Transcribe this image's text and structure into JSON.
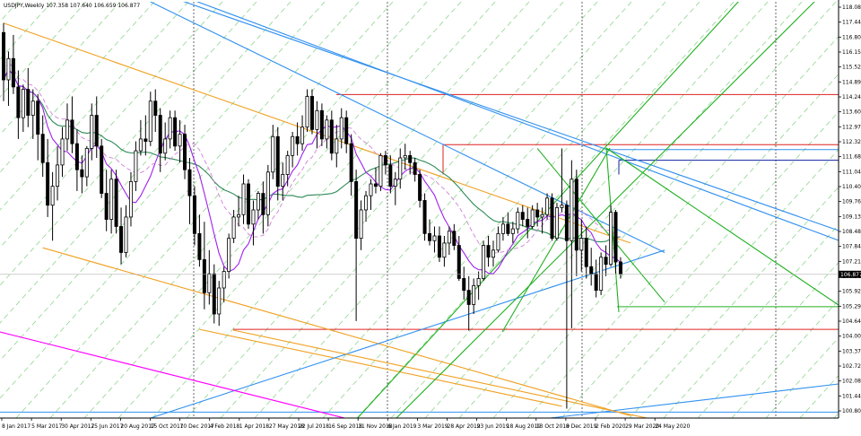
{
  "chart_data": {
    "type": "candlestick",
    "title": "USDJPY,Weekly  107.358 107.640 106.659 106.877",
    "current_price": "106.877",
    "x_ticks": [
      "8 Jan 2017",
      "5 Mar 2017",
      "30 Apr 2017",
      "25 Jun 2017",
      "20 Aug 2017",
      "15 Oct 2017",
      "10 Dec 2017",
      "4 Feb 2018",
      "1 Apr 2018",
      "27 May 2018",
      "22 Jul 2018",
      "16 Sep 2018",
      "11 Nov 2018",
      "6 Jan 2019",
      "3 Mar 2019",
      "28 Apr 2019",
      "23 Jun 2019",
      "18 Aug 2019",
      "13 Oct 2019",
      "8 Dec 2019",
      "2 Feb 2020",
      "29 Mar 2020",
      "24 May 2020"
    ],
    "y_ticks": [
      "118.085",
      "117.440",
      "116.800",
      "116.155",
      "115.520",
      "114.890",
      "114.245",
      "113.600",
      "112.970",
      "112.325",
      "111.680",
      "111.040",
      "110.405",
      "109.760",
      "109.130",
      "108.485",
      "107.840",
      "107.210",
      "106.565",
      "105.920",
      "105.290",
      "104.645",
      "104.000",
      "103.370",
      "102.725",
      "102.080",
      "101.445",
      "100.800"
    ],
    "ylim": [
      100.8,
      118.4
    ],
    "colors": {
      "candle": "#000000",
      "ma_fast": "#a020f0",
      "ma_medium": "#2e8b57",
      "ma_dashed": "#d080d8",
      "channel_orange": "#f0a020",
      "trend_blue": "#3090f0",
      "trend_green": "#20b020",
      "grid_dashed_green": "#7fd07f",
      "level_red": "#e02020",
      "level_navy": "#1020a0",
      "trend_magenta": "#ff00ff",
      "price_label_bg": "#000000",
      "price_label_text": "#ffffff"
    },
    "horizontal_levels": [
      {
        "price": 114.48,
        "color": "red"
      },
      {
        "price": 112.36,
        "color": "red"
      },
      {
        "price": 112.15,
        "color": "blue"
      },
      {
        "price": 111.7,
        "color": "navy"
      },
      {
        "price": 105.51,
        "color": "green"
      },
      {
        "price": 104.55,
        "color": "red"
      },
      {
        "price": 101.05,
        "color": "blue"
      }
    ],
    "candles": [
      [
        117.1,
        117.5,
        114.2,
        115.1
      ],
      [
        115.1,
        116.3,
        114.0,
        116.0
      ],
      [
        116.0,
        117.0,
        114.5,
        114.8
      ],
      [
        114.8,
        115.5,
        112.6,
        113.5
      ],
      [
        113.5,
        114.9,
        112.9,
        114.7
      ],
      [
        114.7,
        115.6,
        113.1,
        113.6
      ],
      [
        113.6,
        114.7,
        112.6,
        114.2
      ],
      [
        114.2,
        114.5,
        111.7,
        112.8
      ],
      [
        112.8,
        113.6,
        111.0,
        111.6
      ],
      [
        111.6,
        112.6,
        109.3,
        109.8
      ],
      [
        109.8,
        111.2,
        108.3,
        110.6
      ],
      [
        110.6,
        112.3,
        110.0,
        111.5
      ],
      [
        111.5,
        113.1,
        111.0,
        112.6
      ],
      [
        112.6,
        114.1,
        112.1,
        113.4
      ],
      [
        113.4,
        114.4,
        112.0,
        112.4
      ],
      [
        112.4,
        113.0,
        110.4,
        111.3
      ],
      [
        111.3,
        111.9,
        110.3,
        111.0
      ],
      [
        111.0,
        112.3,
        110.6,
        112.2
      ],
      [
        112.2,
        114.1,
        111.7,
        113.6
      ],
      [
        113.6,
        114.4,
        111.8,
        112.3
      ],
      [
        112.3,
        112.6,
        110.1,
        110.3
      ],
      [
        110.3,
        111.3,
        108.7,
        109.2
      ],
      [
        109.2,
        111.3,
        108.6,
        110.9
      ],
      [
        110.9,
        111.3,
        108.6,
        108.9
      ],
      [
        108.9,
        109.7,
        107.3,
        107.8
      ],
      [
        107.8,
        109.8,
        107.6,
        109.3
      ],
      [
        109.3,
        111.2,
        108.9,
        110.8
      ],
      [
        110.8,
        112.5,
        110.4,
        112.1
      ],
      [
        112.1,
        113.4,
        111.9,
        112.6
      ],
      [
        112.6,
        113.6,
        111.9,
        112.5
      ],
      [
        112.5,
        114.6,
        112.3,
        114.2
      ],
      [
        114.2,
        114.7,
        112.9,
        113.6
      ],
      [
        113.6,
        113.9,
        111.2,
        112.0
      ],
      [
        112.0,
        113.3,
        111.7,
        112.6
      ],
      [
        112.6,
        113.8,
        112.2,
        113.5
      ],
      [
        113.5,
        113.8,
        112.1,
        112.3
      ],
      [
        112.3,
        113.4,
        111.6,
        112.8
      ],
      [
        112.8,
        113.2,
        110.9,
        111.3
      ],
      [
        111.3,
        111.8,
        109.0,
        110.2
      ],
      [
        110.2,
        110.6,
        108.1,
        108.6
      ],
      [
        108.6,
        109.4,
        107.2,
        107.5
      ],
      [
        107.5,
        109.1,
        105.4,
        106.1
      ],
      [
        106.1,
        107.9,
        105.6,
        106.9
      ],
      [
        106.9,
        107.3,
        104.8,
        105.2
      ],
      [
        105.2,
        106.6,
        104.7,
        106.3
      ],
      [
        106.3,
        107.2,
        105.7,
        107.0
      ],
      [
        107.0,
        108.6,
        106.7,
        108.4
      ],
      [
        108.4,
        109.6,
        108.2,
        109.3
      ],
      [
        109.3,
        110.2,
        108.9,
        109.4
      ],
      [
        109.4,
        111.1,
        109.0,
        110.7
      ],
      [
        110.7,
        110.9,
        108.8,
        109.0
      ],
      [
        109.0,
        110.0,
        108.1,
        109.6
      ],
      [
        109.6,
        110.4,
        109.2,
        110.3
      ],
      [
        110.3,
        110.8,
        108.6,
        109.4
      ],
      [
        109.4,
        111.5,
        108.9,
        111.2
      ],
      [
        111.2,
        113.2,
        110.9,
        112.7
      ],
      [
        112.7,
        113.1,
        110.0,
        110.6
      ],
      [
        110.6,
        111.6,
        110.0,
        111.1
      ],
      [
        111.1,
        112.1,
        110.6,
        111.9
      ],
      [
        111.9,
        112.9,
        111.4,
        112.7
      ],
      [
        112.7,
        113.3,
        111.9,
        112.4
      ],
      [
        112.4,
        113.6,
        112.1,
        113.1
      ],
      [
        113.1,
        114.7,
        112.9,
        114.4
      ],
      [
        114.4,
        114.7,
        112.8,
        113.0
      ],
      [
        113.0,
        114.2,
        112.2,
        113.8
      ],
      [
        113.8,
        114.1,
        112.3,
        112.6
      ],
      [
        112.6,
        113.6,
        112.2,
        113.4
      ],
      [
        113.4,
        113.8,
        111.7,
        112.0
      ],
      [
        112.0,
        113.2,
        111.4,
        112.6
      ],
      [
        112.6,
        113.9,
        112.2,
        113.5
      ],
      [
        113.5,
        113.8,
        112.0,
        112.4
      ],
      [
        112.4,
        112.8,
        110.2,
        110.8
      ],
      [
        110.8,
        111.3,
        104.9,
        108.4
      ],
      [
        108.4,
        110.0,
        107.9,
        109.6
      ],
      [
        109.6,
        110.4,
        109.1,
        110.2
      ],
      [
        110.2,
        110.9,
        109.6,
        110.7
      ],
      [
        110.7,
        111.4,
        110.3,
        110.6
      ],
      [
        110.6,
        112.0,
        110.4,
        111.9
      ],
      [
        111.9,
        112.1,
        111.1,
        111.5
      ],
      [
        111.5,
        111.9,
        110.3,
        110.6
      ],
      [
        110.6,
        111.2,
        109.8,
        110.9
      ],
      [
        110.9,
        112.2,
        110.5,
        111.8
      ],
      [
        111.8,
        112.4,
        111.3,
        111.9
      ],
      [
        111.9,
        112.1,
        111.1,
        111.6
      ],
      [
        111.6,
        111.8,
        110.8,
        111.1
      ],
      [
        111.1,
        111.3,
        109.7,
        110.0
      ],
      [
        110.0,
        110.3,
        108.3,
        108.6
      ],
      [
        108.6,
        109.2,
        108.1,
        108.3
      ],
      [
        108.3,
        108.9,
        107.8,
        108.5
      ],
      [
        108.5,
        108.9,
        107.4,
        107.6
      ],
      [
        107.6,
        108.5,
        107.2,
        108.2
      ],
      [
        108.2,
        108.9,
        107.7,
        108.7
      ],
      [
        108.7,
        109.0,
        107.9,
        108.1
      ],
      [
        108.1,
        108.5,
        106.6,
        106.7
      ],
      [
        106.7,
        107.2,
        105.8,
        106.2
      ],
      [
        106.2,
        106.8,
        104.5,
        105.6
      ],
      [
        105.6,
        106.7,
        105.2,
        106.4
      ],
      [
        106.4,
        107.0,
        105.8,
        106.7
      ],
      [
        106.7,
        108.3,
        106.6,
        108.1
      ],
      [
        108.1,
        108.5,
        107.2,
        107.6
      ],
      [
        107.6,
        108.3,
        107.2,
        107.9
      ],
      [
        107.9,
        108.9,
        107.8,
        108.6
      ],
      [
        108.6,
        109.3,
        108.3,
        109.0
      ],
      [
        109.0,
        109.5,
        108.5,
        108.6
      ],
      [
        108.6,
        109.1,
        108.2,
        108.8
      ],
      [
        108.8,
        109.7,
        108.6,
        109.5
      ],
      [
        109.5,
        109.8,
        108.9,
        109.2
      ],
      [
        109.2,
        109.7,
        108.4,
        108.9
      ],
      [
        108.9,
        109.8,
        108.8,
        109.6
      ],
      [
        109.6,
        109.9,
        108.9,
        109.3
      ],
      [
        109.3,
        109.7,
        108.6,
        109.4
      ],
      [
        109.4,
        110.3,
        109.2,
        110.1
      ],
      [
        110.1,
        110.3,
        108.3,
        108.4
      ],
      [
        108.4,
        109.9,
        108.3,
        109.7
      ],
      [
        109.7,
        112.2,
        109.5,
        109.8
      ],
      [
        109.8,
        110.0,
        101.2,
        108.3
      ],
      [
        108.3,
        111.7,
        104.6,
        110.9
      ],
      [
        110.9,
        111.3,
        106.8,
        107.9
      ],
      [
        107.9,
        109.2,
        107.0,
        108.4
      ],
      [
        108.4,
        108.9,
        106.7,
        107.2
      ],
      [
        107.2,
        108.0,
        106.4,
        106.9
      ],
      [
        106.9,
        107.5,
        105.9,
        106.2
      ],
      [
        106.2,
        107.8,
        106.0,
        107.6
      ],
      [
        107.6,
        108.1,
        106.8,
        107.3
      ],
      [
        107.3,
        109.8,
        107.2,
        109.5
      ],
      [
        109.5,
        109.6,
        106.9,
        107.4
      ],
      [
        107.4,
        107.6,
        106.7,
        106.9
      ]
    ],
    "trend_lines": [
      {
        "color": "orange",
        "from": [
          0,
          117.5
        ],
        "to": [
          128,
          108.2
        ]
      },
      {
        "color": "orange",
        "from": [
          8,
          108.0
        ],
        "to": [
          128,
          100.9
        ]
      },
      {
        "color": "orange",
        "from": [
          40,
          104.55
        ],
        "to": [
          114,
          101.3
        ]
      },
      {
        "color": "blue",
        "from": [
          30,
          118.4
        ],
        "to": [
          135,
          107.8
        ]
      },
      {
        "color": "blue",
        "from": [
          30,
          100.8
        ],
        "to": [
          135,
          107.9
        ]
      },
      {
        "color": "green",
        "from": [
          109,
          112.2
        ],
        "to": [
          135,
          105.7
        ]
      }
    ]
  }
}
